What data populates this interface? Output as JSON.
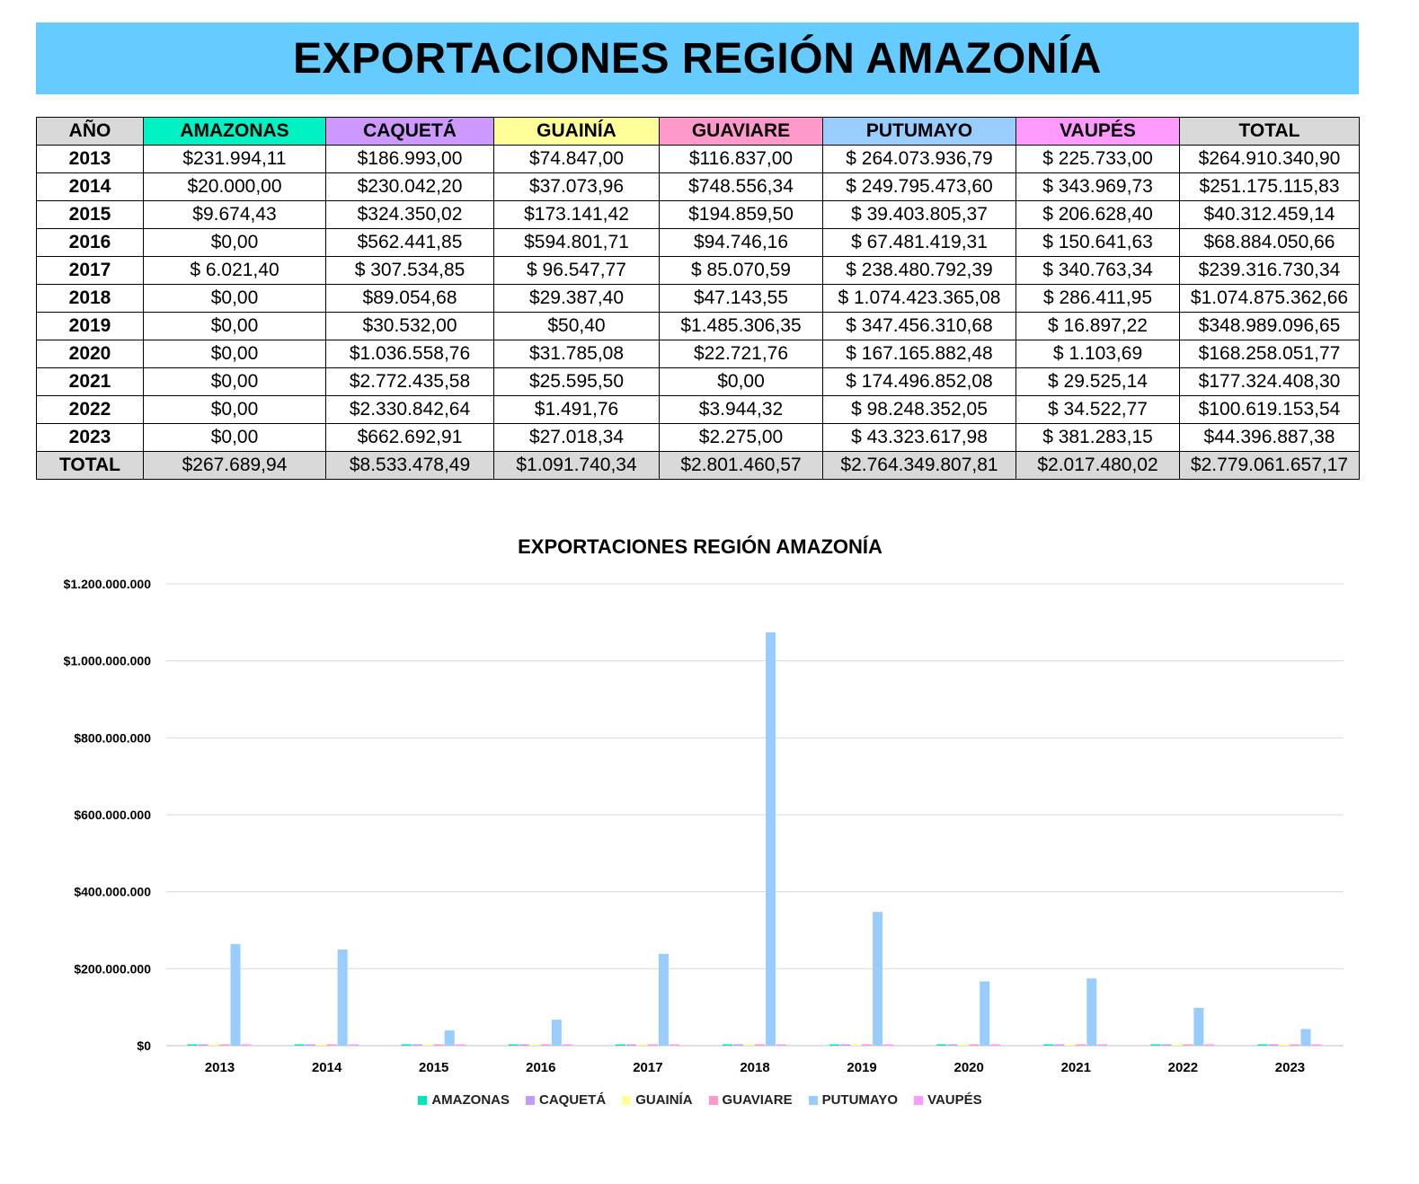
{
  "page_title": "EXPORTACIONES REGIÓN AMAZONÍA",
  "table": {
    "headers": [
      "AÑO",
      "AMAZONAS",
      "CAQUETÁ",
      "GUAINÍA",
      "GUAVIARE",
      "PUTUMAYO",
      "VAUPÉS",
      "TOTAL"
    ],
    "header_colors": [
      "#d9d9d9",
      "#00f2c3",
      "#cc99ff",
      "#ffff99",
      "#ff99cc",
      "#99ccff",
      "#ff99ff",
      "#d9d9d9"
    ],
    "rows": [
      [
        "2013",
        "$231.994,11",
        "$186.993,00",
        "$74.847,00",
        "$116.837,00",
        "$ 264.073.936,79",
        "$ 225.733,00",
        "$264.910.340,90"
      ],
      [
        "2014",
        "$20.000,00",
        "$230.042,20",
        "$37.073,96",
        "$748.556,34",
        "$ 249.795.473,60",
        "$ 343.969,73",
        "$251.175.115,83"
      ],
      [
        "2015",
        "$9.674,43",
        "$324.350,02",
        "$173.141,42",
        "$194.859,50",
        "$ 39.403.805,37",
        "$ 206.628,40",
        "$40.312.459,14"
      ],
      [
        "2016",
        "$0,00",
        "$562.441,85",
        "$594.801,71",
        "$94.746,16",
        "$ 67.481.419,31",
        "$ 150.641,63",
        "$68.884.050,66"
      ],
      [
        "2017",
        "$ 6.021,40",
        "$ 307.534,85",
        "$ 96.547,77",
        "$ 85.070,59",
        "$ 238.480.792,39",
        "$ 340.763,34",
        "$239.316.730,34"
      ],
      [
        "2018",
        "$0,00",
        "$89.054,68",
        "$29.387,40",
        "$47.143,55",
        "$ 1.074.423.365,08",
        "$ 286.411,95",
        "$1.074.875.362,66"
      ],
      [
        "2019",
        "$0,00",
        "$30.532,00",
        "$50,40",
        "$1.485.306,35",
        "$ 347.456.310,68",
        "$ 16.897,22",
        "$348.989.096,65"
      ],
      [
        "2020",
        "$0,00",
        "$1.036.558,76",
        "$31.785,08",
        "$22.721,76",
        "$ 167.165.882,48",
        "$ 1.103,69",
        "$168.258.051,77"
      ],
      [
        "2021",
        "$0,00",
        "$2.772.435,58",
        "$25.595,50",
        "$0,00",
        "$ 174.496.852,08",
        "$ 29.525,14",
        "$177.324.408,30"
      ],
      [
        "2022",
        "$0,00",
        "$2.330.842,64",
        "$1.491,76",
        "$3.944,32",
        "$ 98.248.352,05",
        "$ 34.522,77",
        "$100.619.153,54"
      ],
      [
        "2023",
        "$0,00",
        "$662.692,91",
        "$27.018,34",
        "$2.275,00",
        "$ 43.323.617,98",
        "$ 381.283,15",
        "$44.396.887,38"
      ]
    ],
    "total_row": [
      "TOTAL",
      "$267.689,94",
      "$8.533.478,49",
      "$1.091.740,34",
      "$2.801.460,57",
      "$2.764.349.807,81",
      "$2.017.480,02",
      "$2.779.061.657,17"
    ]
  },
  "chart_data": {
    "type": "bar",
    "title": "EXPORTACIONES REGIÓN AMAZONÍA",
    "xlabel": "",
    "ylabel": "",
    "categories": [
      "2013",
      "2014",
      "2015",
      "2016",
      "2017",
      "2018",
      "2019",
      "2020",
      "2021",
      "2022",
      "2023"
    ],
    "ylim": [
      0,
      1200000000
    ],
    "yticks": [
      0,
      200000000,
      400000000,
      600000000,
      800000000,
      1000000000,
      1200000000
    ],
    "ytick_labels": [
      "$0",
      "$200.000.000",
      "$400.000.000",
      "$600.000.000",
      "$800.000.000",
      "$1.000.000.000",
      "$1.200.000.000"
    ],
    "grid": true,
    "legend_position": "bottom",
    "series": [
      {
        "name": "AMAZONAS",
        "color": "#00e6b8",
        "values": [
          231994.11,
          20000.0,
          9674.43,
          0,
          6021.4,
          0,
          0,
          0,
          0,
          0,
          0
        ]
      },
      {
        "name": "CAQUETÁ",
        "color": "#c39bff",
        "values": [
          186993.0,
          230042.2,
          324350.02,
          562441.85,
          307534.85,
          89054.68,
          30532.0,
          1036558.76,
          2772435.58,
          2330842.64,
          662692.91
        ]
      },
      {
        "name": "GUAINÍA",
        "color": "#ffff99",
        "values": [
          74847.0,
          37073.96,
          173141.42,
          594801.71,
          96547.77,
          29387.4,
          50.4,
          31785.08,
          25595.5,
          1491.76,
          27018.34
        ]
      },
      {
        "name": "GUAVIARE",
        "color": "#ff99cc",
        "values": [
          116837.0,
          748556.34,
          194859.5,
          94746.16,
          85070.59,
          47143.55,
          1485306.35,
          22721.76,
          0,
          3944.32,
          2275.0
        ]
      },
      {
        "name": "PUTUMAYO",
        "color": "#99ccff",
        "values": [
          264073936.79,
          249795473.6,
          39403805.37,
          67481419.31,
          238480792.39,
          1074423365.08,
          347456310.68,
          167165882.48,
          174496852.08,
          98248352.05,
          43323617.98
        ]
      },
      {
        "name": "VAUPÉS",
        "color": "#ff99ff",
        "values": [
          225733.0,
          343969.73,
          206628.4,
          150641.63,
          340763.34,
          286411.95,
          16897.22,
          1103.69,
          29525.14,
          34522.77,
          381283.15
        ]
      }
    ]
  }
}
